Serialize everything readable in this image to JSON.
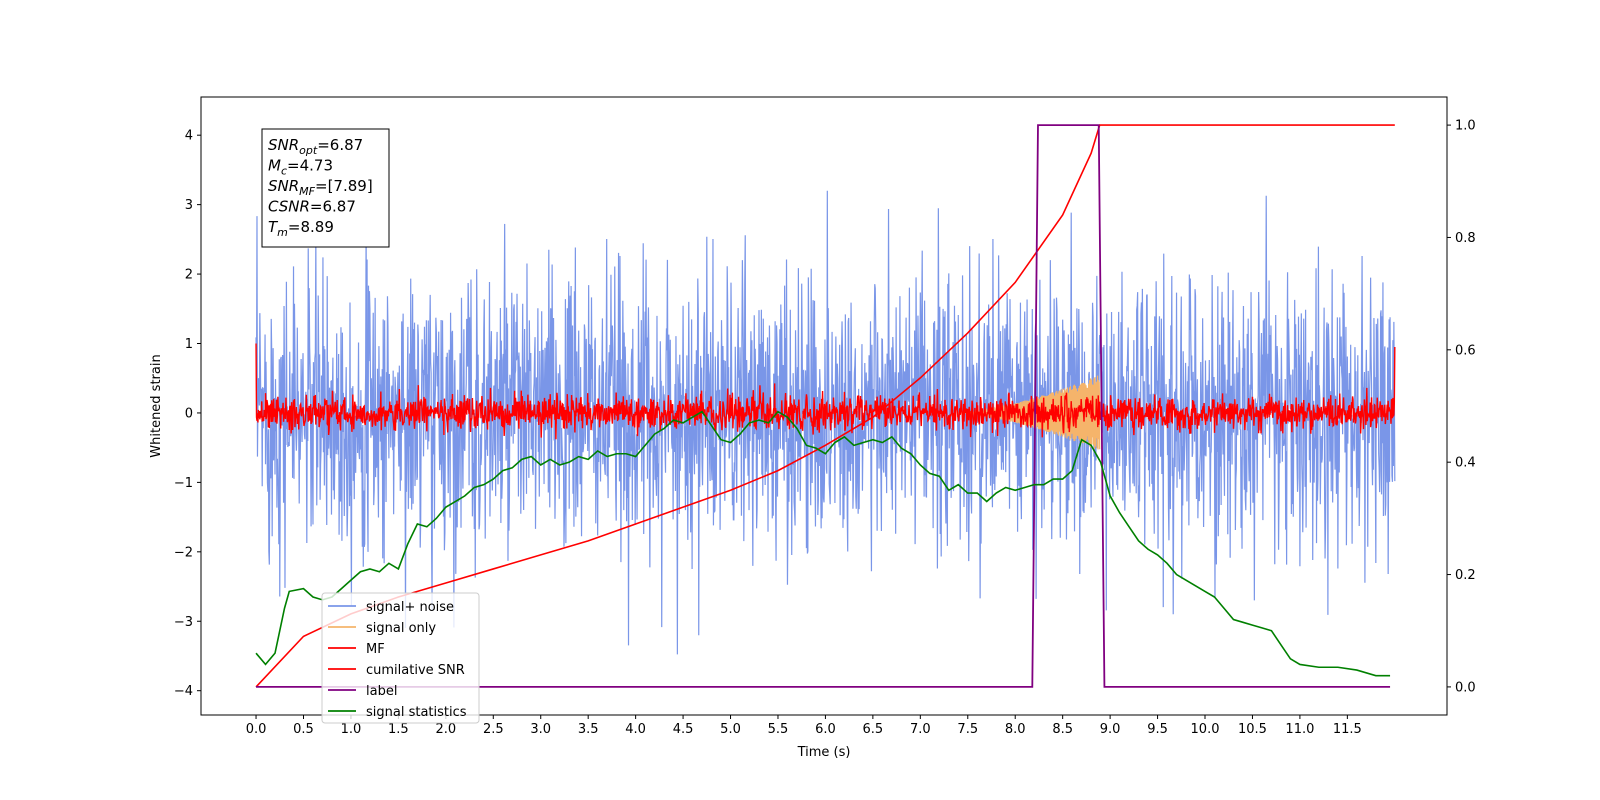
{
  "chart_data": {
    "type": "line",
    "xlabel": "Time (s)",
    "ylabel": "Whitened strain",
    "xlim": [
      -0.58,
      12.55
    ],
    "ylim": [
      -4.35,
      4.55
    ],
    "y2lim": [
      -0.05,
      1.05
    ],
    "xticks": [
      "0.0",
      "0.5",
      "1.0",
      "1.5",
      "2.0",
      "2.5",
      "3.0",
      "3.5",
      "4.0",
      "4.5",
      "5.0",
      "5.5",
      "6.0",
      "6.5",
      "7.0",
      "7.5",
      "8.0",
      "8.5",
      "9.0",
      "9.5",
      "10.0",
      "10.5",
      "11.0",
      "11.5"
    ],
    "yticks": [
      "−4",
      "−3",
      "−2",
      "−1",
      "0",
      "1",
      "2",
      "3",
      "4"
    ],
    "y2ticks": [
      "0.0",
      "0.2",
      "0.4",
      "0.6",
      "0.8",
      "1.0"
    ],
    "grid": false,
    "legend_position": "lower-left",
    "annotation": [
      {
        "main": "SNR",
        "sub": "opt",
        "value": "=6.87"
      },
      {
        "main": "M",
        "sub": "c",
        "value": "=4.73"
      },
      {
        "main": "SNR",
        "sub": "MF",
        "value": "=[7.89]"
      },
      {
        "main": "CSNR",
        "sub": "",
        "value": "=6.87"
      },
      {
        "main": "T",
        "sub": "m",
        "value": "=8.89"
      }
    ],
    "series": [
      {
        "name": "signal+ noise",
        "color": "#7a96e8",
        "axis": "left",
        "description": "noise band",
        "band_std": 1.0,
        "x_range": [
          0.0,
          12.0
        ]
      },
      {
        "name": "signal only",
        "color": "#f5b46b",
        "axis": "left",
        "chirp_start": 7.4,
        "chirp_end": 8.89,
        "peak_amplitude": 0.55
      },
      {
        "name": "MF",
        "color": "#ff0000",
        "axis": "left",
        "band_std": 0.12,
        "x_range": [
          0.0,
          12.0
        ]
      },
      {
        "name": "cumilative SNR",
        "color": "#ff0000",
        "axis": "right",
        "x": [
          0.0,
          0.5,
          1.0,
          1.5,
          2.0,
          2.5,
          3.0,
          3.5,
          4.0,
          4.5,
          5.0,
          5.5,
          6.0,
          6.5,
          7.0,
          7.5,
          8.0,
          8.5,
          8.8,
          8.89,
          9.0,
          12.0
        ],
        "values": [
          0.0,
          0.09,
          0.13,
          0.16,
          0.185,
          0.21,
          0.235,
          0.26,
          0.29,
          0.32,
          0.35,
          0.385,
          0.43,
          0.48,
          0.55,
          0.63,
          0.72,
          0.84,
          0.95,
          1.0,
          1.0,
          1.0
        ]
      },
      {
        "name": "label",
        "color": "#800080",
        "axis": "right",
        "x": [
          0.0,
          8.18,
          8.24,
          8.88,
          8.94,
          11.95
        ],
        "values": [
          0.0,
          0.0,
          1.0,
          1.0,
          0.0,
          0.0
        ]
      },
      {
        "name": "signal statistics",
        "color": "#008000",
        "axis": "right",
        "x": [
          0.0,
          0.1,
          0.2,
          0.3,
          0.35,
          0.5,
          0.6,
          0.7,
          0.8,
          0.9,
          1.0,
          1.1,
          1.2,
          1.3,
          1.4,
          1.5,
          1.6,
          1.7,
          1.8,
          1.9,
          2.0,
          2.1,
          2.2,
          2.3,
          2.4,
          2.5,
          2.6,
          2.7,
          2.8,
          2.9,
          3.0,
          3.1,
          3.2,
          3.3,
          3.4,
          3.5,
          3.6,
          3.7,
          3.8,
          3.9,
          4.0,
          4.1,
          4.2,
          4.3,
          4.4,
          4.5,
          4.6,
          4.7,
          4.8,
          4.9,
          5.0,
          5.1,
          5.2,
          5.3,
          5.4,
          5.5,
          5.6,
          5.7,
          5.8,
          5.9,
          6.0,
          6.1,
          6.2,
          6.3,
          6.4,
          6.5,
          6.6,
          6.7,
          6.8,
          6.9,
          7.0,
          7.1,
          7.2,
          7.3,
          7.4,
          7.5,
          7.6,
          7.7,
          7.8,
          7.9,
          8.0,
          8.1,
          8.2,
          8.3,
          8.4,
          8.5,
          8.6,
          8.7,
          8.8,
          8.9,
          9.0,
          9.1,
          9.2,
          9.3,
          9.4,
          9.5,
          9.6,
          9.7,
          9.8,
          9.9,
          10.0,
          10.1,
          10.2,
          10.3,
          10.4,
          10.5,
          10.6,
          10.7,
          10.8,
          10.9,
          11.0,
          11.2,
          11.4,
          11.6,
          11.8,
          11.95
        ],
        "values": [
          0.06,
          0.04,
          0.06,
          0.14,
          0.17,
          0.175,
          0.16,
          0.155,
          0.16,
          0.175,
          0.19,
          0.205,
          0.21,
          0.205,
          0.22,
          0.21,
          0.255,
          0.29,
          0.285,
          0.3,
          0.32,
          0.33,
          0.34,
          0.355,
          0.36,
          0.37,
          0.385,
          0.39,
          0.405,
          0.41,
          0.395,
          0.405,
          0.395,
          0.4,
          0.41,
          0.405,
          0.42,
          0.41,
          0.415,
          0.415,
          0.41,
          0.43,
          0.45,
          0.46,
          0.475,
          0.47,
          0.48,
          0.49,
          0.465,
          0.44,
          0.435,
          0.45,
          0.47,
          0.475,
          0.47,
          0.49,
          0.48,
          0.46,
          0.43,
          0.425,
          0.415,
          0.435,
          0.445,
          0.43,
          0.435,
          0.44,
          0.435,
          0.445,
          0.425,
          0.415,
          0.395,
          0.38,
          0.375,
          0.35,
          0.36,
          0.345,
          0.345,
          0.33,
          0.345,
          0.355,
          0.35,
          0.355,
          0.36,
          0.36,
          0.37,
          0.37,
          0.385,
          0.44,
          0.43,
          0.4,
          0.34,
          0.31,
          0.285,
          0.26,
          0.245,
          0.235,
          0.22,
          0.2,
          0.19,
          0.18,
          0.17,
          0.16,
          0.14,
          0.12,
          0.115,
          0.11,
          0.105,
          0.1,
          0.075,
          0.05,
          0.04,
          0.035,
          0.035,
          0.03,
          0.02,
          0.02
        ]
      }
    ]
  }
}
